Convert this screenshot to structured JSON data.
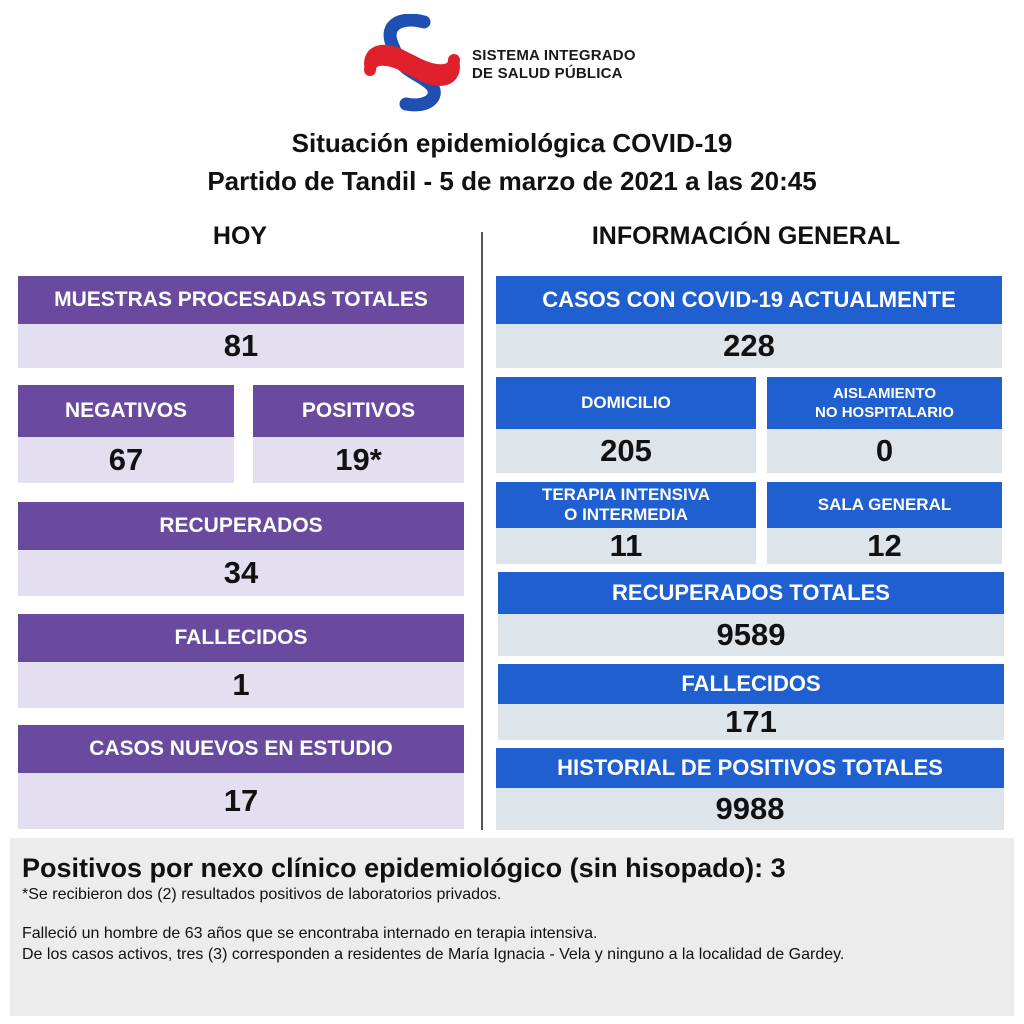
{
  "header": {
    "org_line1": "SISTEMA INTEGRADO",
    "org_line2": "DE SALUD PÚBLICA",
    "title_line1": "Situación epidemiológica COVID-19",
    "title_line2": "Partido de Tandil - 5 de marzo de 2021 a las 20:45"
  },
  "colors": {
    "purple": "#6a4a9f",
    "purple_light": "#e3dff0",
    "blue": "#1f5fcf",
    "blue_light": "#dde4ea",
    "logo_red": "#e0202b",
    "logo_blue": "#1f4fb0"
  },
  "hoy": {
    "title": "HOY",
    "muestras": {
      "label": "MUESTRAS PROCESADAS TOTALES",
      "value": "81"
    },
    "negativos": {
      "label": "NEGATIVOS",
      "value": "67"
    },
    "positivos": {
      "label": "POSITIVOS",
      "value": "19*"
    },
    "recuperados": {
      "label": "RECUPERADOS",
      "value": "34"
    },
    "fallecidos": {
      "label": "FALLECIDOS",
      "value": "1"
    },
    "casos_nuevos": {
      "label": "CASOS NUEVOS EN ESTUDIO",
      "value": "17"
    }
  },
  "general": {
    "title": "INFORMACIÓN GENERAL",
    "casos_actuales": {
      "label": "CASOS CON COVID-19 ACTUALMENTE",
      "value": "228"
    },
    "domicilio": {
      "label": "DOMICILIO",
      "value": "205"
    },
    "aislamiento": {
      "label_line1": "AISLAMIENTO",
      "label_line2": "NO HOSPITALARIO",
      "value": "0"
    },
    "terapia": {
      "label_line1": "TERAPIA INTENSIVA",
      "label_line2": "O INTERMEDIA",
      "value": "11"
    },
    "sala_general": {
      "label": "SALA GENERAL",
      "value": "12"
    },
    "recuperados_totales": {
      "label": "RECUPERADOS TOTALES",
      "value": "9589"
    },
    "fallecidos": {
      "label": "FALLECIDOS",
      "value": "171"
    },
    "historial": {
      "label": "HISTORIAL DE POSITIVOS TOTALES",
      "value": "9988"
    }
  },
  "notes": {
    "headline": "Positivos por nexo clínico epidemiológico (sin hisopado): 3",
    "footnote": "*Se recibieron dos (2) resultados positivos de laboratorios privados.",
    "line1": "Falleció un hombre de 63 años que se encontraba internado en terapia intensiva.",
    "line2": "De los casos activos, tres (3) corresponden a residentes de María Ignacia - Vela y ninguno a la localidad de Gardey."
  }
}
